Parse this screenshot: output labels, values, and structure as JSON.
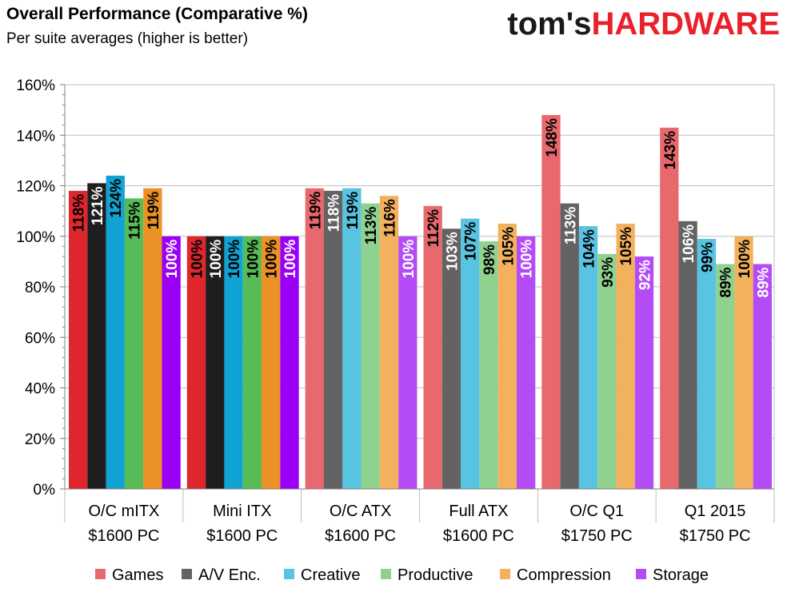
{
  "header": {
    "logo_part1": "tom's",
    "logo_part2": "HARDWARE"
  },
  "chart_data": {
    "type": "bar",
    "title": "Overall Performance (Comparative %)",
    "subtitle": "Per suite averages (higher is better)",
    "categories": [
      [
        "O/C mITX",
        "$1600 PC"
      ],
      [
        "Mini ITX",
        "$1600 PC"
      ],
      [
        "O/C ATX",
        "$1600 PC"
      ],
      [
        "Full ATX",
        "$1600 PC"
      ],
      [
        "O/C Q1",
        "$1750 PC"
      ],
      [
        "Q1 2015",
        "$1750 PC"
      ]
    ],
    "series": [
      {
        "name": "Games",
        "legend_color": "#e8696d",
        "colors": [
          "#e0262d",
          "#e0262d",
          "#e8696d",
          "#e8696d",
          "#e8696d",
          "#e8696d"
        ],
        "values": [
          118,
          100,
          119,
          112,
          148,
          143
        ]
      },
      {
        "name": "A/V Enc.",
        "legend_color": "#636363",
        "colors": [
          "#1e1e1e",
          "#1e1e1e",
          "#636363",
          "#636363",
          "#636363",
          "#636363"
        ],
        "values": [
          121,
          100,
          118,
          103,
          113,
          106
        ]
      },
      {
        "name": "Creative",
        "legend_color": "#59c3e2",
        "colors": [
          "#11a2d4",
          "#11a2d4",
          "#59c3e2",
          "#59c3e2",
          "#59c3e2",
          "#59c3e2"
        ],
        "values": [
          124,
          100,
          119,
          107,
          104,
          99
        ]
      },
      {
        "name": "Productive",
        "legend_color": "#8fd18f",
        "colors": [
          "#57bb57",
          "#57bb57",
          "#8fd18f",
          "#8fd18f",
          "#8fd18f",
          "#8fd18f"
        ],
        "values": [
          115,
          100,
          113,
          98,
          93,
          89
        ]
      },
      {
        "name": "Compression",
        "legend_color": "#f3b15e",
        "colors": [
          "#ec9126",
          "#ec9126",
          "#f3b15e",
          "#f3b15e",
          "#f3b15e",
          "#f3b15e"
        ],
        "values": [
          119,
          100,
          116,
          105,
          105,
          100
        ]
      },
      {
        "name": "Storage",
        "legend_color": "#b34cf7",
        "colors": [
          "#9a00f5",
          "#9a00f5",
          "#b34cf7",
          "#b34cf7",
          "#b34cf7",
          "#b34cf7"
        ],
        "values": [
          100,
          100,
          100,
          100,
          92,
          89
        ]
      }
    ],
    "value_labels": [
      [
        "118%",
        "100%",
        "119%",
        "112%",
        "148%",
        "143%"
      ],
      [
        "121%",
        "100%",
        "118%",
        "103%",
        "113%",
        "106%"
      ],
      [
        "124%",
        "100%",
        "119%",
        "107%",
        "104%",
        "99%"
      ],
      [
        "115%",
        "100%",
        "113%",
        "98%",
        "93%",
        "89%"
      ],
      [
        "119%",
        "100%",
        "116%",
        "105%",
        "105%",
        "100%"
      ],
      [
        "100%",
        "100%",
        "100%",
        "100%",
        "92%",
        "89%"
      ]
    ],
    "ylim": [
      0,
      160
    ],
    "yticks": [
      0,
      20,
      40,
      60,
      80,
      100,
      120,
      140,
      160
    ],
    "ytick_labels": [
      "0%",
      "20%",
      "40%",
      "60%",
      "80%",
      "100%",
      "120%",
      "140%",
      "160%"
    ],
    "grid": true,
    "legend_position": "bottom",
    "label_colors": {
      "dark": "#000000",
      "light": "#ffffff"
    },
    "light_label_series": [
      "A/V Enc.",
      "Storage"
    ]
  }
}
